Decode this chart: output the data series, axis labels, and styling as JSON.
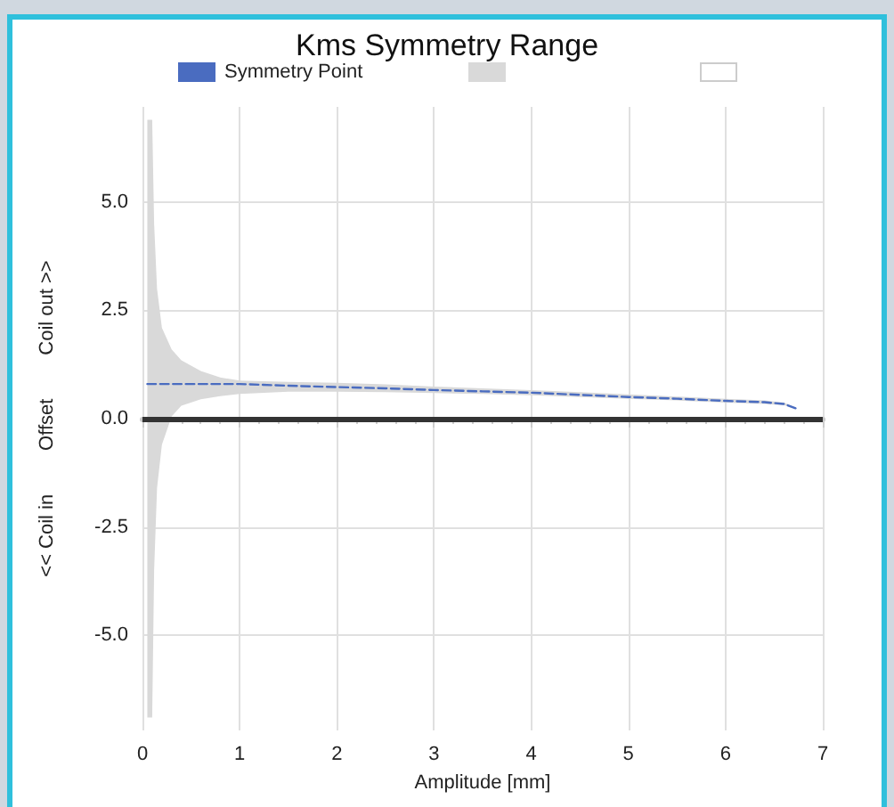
{
  "chart_data": {
    "type": "line",
    "title": "Kms Symmetry Range",
    "xlabel": "Amplitude [mm]",
    "ylabel": "<< Coil in        Offset        Coil out >>",
    "x": [
      0.05,
      0.1,
      0.12,
      0.15,
      0.2,
      0.3,
      0.4,
      0.6,
      0.8,
      1,
      1.5,
      2,
      2.5,
      3,
      3.5,
      4,
      4.5,
      5,
      5.5,
      6,
      6.4,
      6.6,
      6.72
    ],
    "series": [
      {
        "name": "Symmetry Point",
        "color": "#4a6cc0",
        "line_style": "dashed",
        "values": [
          0.8,
          0.8,
          0.8,
          0.8,
          0.8,
          0.8,
          0.8,
          0.8,
          0.8,
          0.8,
          0.76,
          0.73,
          0.7,
          0.66,
          0.63,
          0.6,
          0.55,
          0.5,
          0.46,
          0.41,
          0.38,
          0.34,
          0.24
        ],
        "upper": [
          6.9,
          6.9,
          4.5,
          3.0,
          2.1,
          1.6,
          1.35,
          1.1,
          0.95,
          0.88,
          0.85,
          0.83,
          0.79,
          0.74,
          0.7,
          0.66,
          0.61,
          0.56,
          0.51,
          0.46,
          0.42,
          0.37,
          0.26
        ],
        "lower": [
          -6.9,
          -6.9,
          -3.5,
          -1.6,
          -0.6,
          0.05,
          0.3,
          0.45,
          0.52,
          0.57,
          0.62,
          0.62,
          0.61,
          0.59,
          0.57,
          0.54,
          0.5,
          0.46,
          0.42,
          0.37,
          0.34,
          0.31,
          0.24
        ]
      }
    ],
    "xlim": [
      0,
      7
    ],
    "xticks": [
      0,
      1,
      2,
      3,
      4,
      5,
      6,
      7
    ],
    "ylim": [
      -7.2,
      7.2
    ],
    "yticks": [
      {
        "value": -5,
        "label": "-5.0"
      },
      {
        "value": -2.5,
        "label": "-2.5"
      },
      {
        "value": 0,
        "label": "0.0"
      },
      {
        "value": 2.5,
        "label": "2.5"
      },
      {
        "value": 5,
        "label": "5.0"
      }
    ],
    "ref_lines": [
      {
        "axis": "y",
        "value": 0,
        "color": "#333333"
      }
    ],
    "grid": true,
    "legend": "top",
    "marker": "none"
  }
}
